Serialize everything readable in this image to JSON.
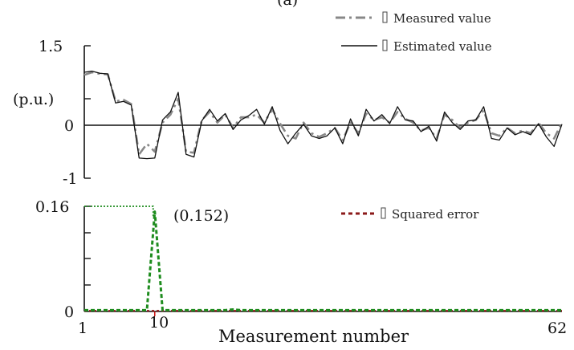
{
  "header_fragment": "(a)",
  "chart_data": [
    {
      "type": "line",
      "x": [
        1,
        2,
        3,
        4,
        5,
        6,
        7,
        8,
        9,
        10,
        11,
        12,
        13,
        14,
        15,
        16,
        17,
        18,
        19,
        20,
        21,
        22,
        23,
        24,
        25,
        26,
        27,
        28,
        29,
        30,
        31,
        32,
        33,
        34,
        35,
        36,
        37,
        38,
        39,
        40,
        41,
        42,
        43,
        44,
        45,
        46,
        47,
        48,
        49,
        50,
        51,
        52,
        53,
        54,
        55,
        56,
        57,
        58,
        59,
        60,
        61,
        62
      ],
      "ylim": [
        -1,
        1.5
      ],
      "yticks": [
        "1.5",
        "0",
        "-1"
      ],
      "ylabel": "(p.u.)",
      "series": [
        {
          "name": "Measured value",
          "color": "#888888",
          "style": "dash-dot",
          "values": [
            0.95,
            1.0,
            0.97,
            0.96,
            0.45,
            0.48,
            0.4,
            -0.55,
            -0.35,
            -0.5,
            0.05,
            0.2,
            0.5,
            -0.5,
            -0.52,
            0.1,
            0.25,
            0.05,
            0.2,
            -0.05,
            0.15,
            0.15,
            0.2,
            0.05,
            0.3,
            0.03,
            -0.2,
            -0.25,
            0.05,
            -0.15,
            -0.22,
            -0.15,
            -0.05,
            -0.28,
            0.05,
            -0.15,
            0.22,
            0.1,
            0.15,
            0.05,
            0.25,
            0.12,
            0.05,
            -0.1,
            -0.05,
            -0.25,
            0.2,
            0.1,
            -0.05,
            0.05,
            0.1,
            0.28,
            -0.15,
            -0.2,
            -0.05,
            -0.15,
            -0.1,
            -0.15,
            0.05,
            -0.15,
            -0.25,
            0.05
          ]
        },
        {
          "name": "Estimated value",
          "color": "#111111",
          "style": "solid",
          "values": [
            1.0,
            1.02,
            0.98,
            0.97,
            0.42,
            0.45,
            0.38,
            -0.62,
            -0.63,
            -0.62,
            0.1,
            0.25,
            0.62,
            -0.55,
            -0.6,
            0.08,
            0.3,
            0.08,
            0.22,
            -0.08,
            0.1,
            0.18,
            0.3,
            0.02,
            0.35,
            -0.1,
            -0.35,
            -0.15,
            0.02,
            -0.2,
            -0.25,
            -0.2,
            -0.05,
            -0.35,
            0.12,
            -0.2,
            0.3,
            0.08,
            0.2,
            0.03,
            0.35,
            0.1,
            0.08,
            -0.12,
            -0.02,
            -0.3,
            0.25,
            0.05,
            -0.08,
            0.08,
            0.1,
            0.35,
            -0.25,
            -0.28,
            -0.05,
            -0.18,
            -0.12,
            -0.18,
            0.03,
            -0.22,
            -0.4,
            0.02
          ]
        }
      ]
    },
    {
      "type": "line",
      "x": [
        1,
        2,
        3,
        4,
        5,
        6,
        7,
        8,
        9,
        10,
        11,
        12,
        13,
        14,
        15,
        16,
        17,
        18,
        19,
        20,
        21,
        22,
        23,
        24,
        25,
        26,
        27,
        28,
        29,
        30,
        31,
        32,
        33,
        34,
        35,
        36,
        37,
        38,
        39,
        40,
        41,
        42,
        43,
        44,
        45,
        46,
        47,
        48,
        49,
        50,
        51,
        52,
        53,
        54,
        55,
        56,
        57,
        58,
        59,
        60,
        61,
        62
      ],
      "ylim": [
        0,
        0.16
      ],
      "yticks": [
        "0.16",
        "0"
      ],
      "xticks": [
        "1",
        "10",
        "62"
      ],
      "xlabel": "Measurement number",
      "annotation": "(0.152)",
      "series": [
        {
          "name": "Squared error",
          "color": "#8b1a1a",
          "style": "dotted",
          "values": [
            0.001,
            0.001,
            0.001,
            0.001,
            0.001,
            0.001,
            0.001,
            0.001,
            0.001,
            0.001,
            0.001,
            0.001,
            0.001,
            0.001,
            0.001,
            0.001,
            0.001,
            0.001,
            0.001,
            0.001,
            0.001,
            0.001,
            0.001,
            0.001,
            0.001,
            0.001,
            0.001,
            0.001,
            0.001,
            0.001,
            0.001,
            0.001,
            0.001,
            0.001,
            0.001,
            0.001,
            0.001,
            0.001,
            0.001,
            0.001,
            0.001,
            0.001,
            0.001,
            0.001,
            0.001,
            0.001,
            0.001,
            0.001,
            0.001,
            0.001,
            0.001,
            0.001,
            0.001,
            0.001,
            0.001,
            0.001,
            0.001,
            0.001,
            0.001,
            0.001,
            0.001,
            0.001
          ]
        },
        {
          "name": "",
          "color": "#1e8c1e",
          "style": "dashed",
          "values": [
            0.002,
            0.002,
            0.002,
            0.002,
            0.002,
            0.002,
            0.002,
            0.002,
            0.002,
            0.152,
            0.002,
            0.002,
            0.002,
            0.002,
            0.002,
            0.002,
            0.002,
            0.002,
            0.002,
            0.003,
            0.002,
            0.002,
            0.002,
            0.002,
            0.002,
            0.002,
            0.002,
            0.002,
            0.002,
            0.002,
            0.002,
            0.002,
            0.002,
            0.002,
            0.002,
            0.002,
            0.002,
            0.002,
            0.002,
            0.002,
            0.002,
            0.002,
            0.002,
            0.002,
            0.002,
            0.002,
            0.002,
            0.002,
            0.002,
            0.002,
            0.002,
            0.002,
            0.002,
            0.002,
            0.002,
            0.002,
            0.002,
            0.002,
            0.002,
            0.002,
            0.002,
            0.002
          ]
        }
      ]
    }
  ],
  "colors": {
    "annotation": "#1e8c1e",
    "tick_highlight": "#cc0000",
    "legend_error_text": "#8b1a1a"
  }
}
